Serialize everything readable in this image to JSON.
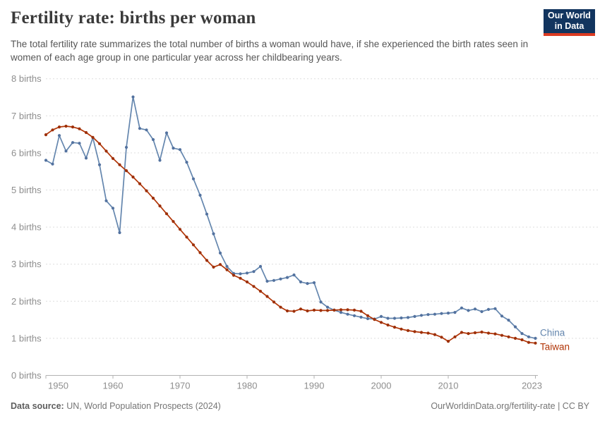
{
  "header": {
    "title": "Fertility rate: births per woman",
    "subtitle": "The total fertility rate summarizes the total number of births a woman would have, if she experienced the birth rates seen in women of each age group in one particular year across her childbearing years.",
    "logo": {
      "line1": "Our World",
      "line2": "in Data",
      "bg_color": "#12355f",
      "accent_color": "#dc3b22"
    }
  },
  "footer": {
    "source_label": "Data source:",
    "source_value": " UN, World Population Prospects (2024)",
    "url": "OurWorldinData.org/fertility-rate",
    "license": " | CC BY"
  },
  "chart_data": {
    "type": "line",
    "title": "Fertility rate: births per woman",
    "xlabel": "",
    "ylabel": "births",
    "ylim": [
      0,
      8
    ],
    "xlim": [
      1950,
      2023
    ],
    "grid": "horizontal dashed",
    "legend": "end-of-line labels",
    "ytick_format": "{v} births",
    "yticks": [
      0,
      1,
      2,
      3,
      4,
      5,
      6,
      7,
      8
    ],
    "xticks": [
      1950,
      1960,
      1970,
      1980,
      1990,
      2000,
      2010,
      2023
    ],
    "style": {
      "grid_color": "#dddddd",
      "axis_color": "#b2b2b2",
      "tick_label_color": "#8e8e8e"
    },
    "x": [
      1950,
      1951,
      1952,
      1953,
      1954,
      1955,
      1956,
      1957,
      1958,
      1959,
      1960,
      1961,
      1962,
      1963,
      1964,
      1965,
      1966,
      1967,
      1968,
      1969,
      1970,
      1971,
      1972,
      1973,
      1974,
      1975,
      1976,
      1977,
      1978,
      1979,
      1980,
      1981,
      1982,
      1983,
      1984,
      1985,
      1986,
      1987,
      1988,
      1989,
      1990,
      1991,
      1992,
      1993,
      1994,
      1995,
      1996,
      1997,
      1998,
      1999,
      2000,
      2001,
      2002,
      2003,
      2004,
      2005,
      2006,
      2007,
      2008,
      2009,
      2010,
      2011,
      2012,
      2013,
      2014,
      2015,
      2016,
      2017,
      2018,
      2019,
      2020,
      2021,
      2022,
      2023
    ],
    "series": [
      {
        "name": "China",
        "color": "#6486ae",
        "marker_color": "#53729f",
        "label_dy": -3.5,
        "values": [
          5.8,
          5.7,
          6.47,
          6.05,
          6.28,
          6.26,
          5.86,
          6.41,
          5.68,
          4.71,
          4.51,
          3.85,
          6.15,
          7.51,
          6.66,
          6.62,
          6.36,
          5.8,
          6.54,
          6.13,
          6.09,
          5.75,
          5.3,
          4.86,
          4.35,
          3.82,
          3.3,
          2.94,
          2.75,
          2.74,
          2.76,
          2.8,
          2.94,
          2.54,
          2.56,
          2.6,
          2.64,
          2.71,
          2.52,
          2.48,
          2.5,
          1.98,
          1.84,
          1.76,
          1.7,
          1.65,
          1.61,
          1.57,
          1.53,
          1.52,
          1.59,
          1.54,
          1.54,
          1.55,
          1.56,
          1.59,
          1.62,
          1.64,
          1.65,
          1.67,
          1.68,
          1.7,
          1.82,
          1.75,
          1.79,
          1.72,
          1.78,
          1.8,
          1.6,
          1.49,
          1.31,
          1.13,
          1.04,
          1.0
        ]
      },
      {
        "name": "Taiwan",
        "color": "#b13507",
        "marker_color": "#9d2f06",
        "label_dy": 10,
        "values": [
          6.49,
          6.62,
          6.7,
          6.72,
          6.7,
          6.65,
          6.55,
          6.42,
          6.25,
          6.05,
          5.85,
          5.68,
          5.52,
          5.35,
          5.17,
          4.98,
          4.78,
          4.57,
          4.36,
          4.15,
          3.94,
          3.73,
          3.52,
          3.31,
          3.1,
          2.92,
          2.99,
          2.85,
          2.7,
          2.62,
          2.52,
          2.4,
          2.27,
          2.13,
          1.98,
          1.84,
          1.74,
          1.73,
          1.79,
          1.74,
          1.76,
          1.75,
          1.75,
          1.76,
          1.77,
          1.77,
          1.76,
          1.73,
          1.61,
          1.51,
          1.43,
          1.36,
          1.3,
          1.25,
          1.21,
          1.18,
          1.16,
          1.14,
          1.1,
          1.03,
          0.92,
          1.04,
          1.16,
          1.13,
          1.15,
          1.17,
          1.14,
          1.12,
          1.08,
          1.04,
          1.0,
          0.96,
          0.89,
          0.87
        ]
      }
    ]
  }
}
